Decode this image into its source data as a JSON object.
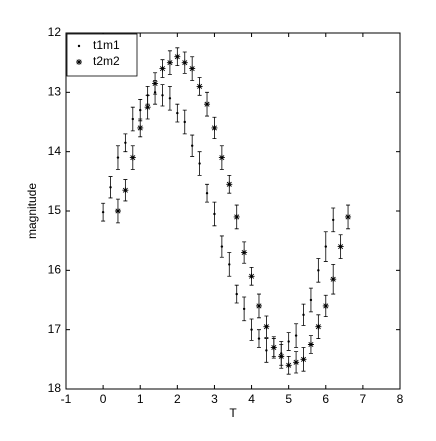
{
  "chart_data": {
    "type": "errorbar_scatter",
    "xlabel": "T",
    "ylabel": "magnitude",
    "xlim": [
      -1,
      8
    ],
    "xticks": [
      -1,
      0,
      1,
      2,
      3,
      4,
      5,
      6,
      7,
      8
    ],
    "ylim": [
      12,
      18
    ],
    "yticks": [
      12,
      13,
      14,
      15,
      16,
      17,
      18
    ],
    "invert_y": true,
    "legend": "northwest",
    "series": [
      {
        "name": "t1m1",
        "marker": "dot",
        "color": "#000000",
        "x": [
          0,
          0.2,
          0.4,
          0.6,
          0.8,
          1.0,
          1.2,
          1.4,
          1.6,
          1.8,
          2.0,
          2.2,
          2.4,
          2.6,
          2.8,
          3.0,
          3.2,
          3.4,
          3.6,
          3.8,
          4.0,
          4.2,
          4.4,
          4.6,
          4.8,
          5.0,
          5.2,
          5.4,
          5.6,
          5.8,
          6.0,
          6.2
        ],
        "values": [
          15.02,
          14.6,
          14.1,
          13.85,
          13.45,
          13.3,
          13.05,
          13.0,
          13.05,
          13.1,
          13.35,
          13.5,
          13.9,
          14.2,
          14.7,
          15.05,
          15.6,
          15.9,
          16.4,
          16.65,
          17.0,
          17.15,
          17.35,
          17.3,
          17.4,
          17.2,
          17.1,
          16.75,
          16.5,
          16.0,
          15.6,
          15.15
        ],
        "errors": [
          0.15,
          0.18,
          0.2,
          0.15,
          0.2,
          0.18,
          0.15,
          0.2,
          0.18,
          0.2,
          0.15,
          0.2,
          0.18,
          0.2,
          0.15,
          0.2,
          0.18,
          0.2,
          0.15,
          0.2,
          0.18,
          0.15,
          0.2,
          0.18,
          0.2,
          0.15,
          0.2,
          0.18,
          0.2,
          0.2,
          0.25,
          0.2
        ]
      },
      {
        "name": "t2m2",
        "marker": "asterisk",
        "color": "#000000",
        "x": [
          0.4,
          0.6,
          0.8,
          1.0,
          1.2,
          1.4,
          1.6,
          1.8,
          2.0,
          2.2,
          2.4,
          2.6,
          2.8,
          3.0,
          3.2,
          3.4,
          3.6,
          3.8,
          4.0,
          4.2,
          4.4,
          4.6,
          4.8,
          5.0,
          5.2,
          5.4,
          5.6,
          5.8,
          6.0,
          6.2,
          6.4,
          6.6
        ],
        "values": [
          15.0,
          14.65,
          14.1,
          13.6,
          13.25,
          12.85,
          12.6,
          12.5,
          12.4,
          12.5,
          12.6,
          12.9,
          13.2,
          13.6,
          14.1,
          14.55,
          15.1,
          15.7,
          16.1,
          16.6,
          16.95,
          17.3,
          17.45,
          17.6,
          17.55,
          17.5,
          17.25,
          16.95,
          16.6,
          16.15,
          15.6,
          15.1
        ],
        "errors": [
          0.2,
          0.18,
          0.2,
          0.15,
          0.2,
          0.18,
          0.15,
          0.2,
          0.15,
          0.18,
          0.2,
          0.15,
          0.2,
          0.18,
          0.2,
          0.15,
          0.2,
          0.18,
          0.15,
          0.2,
          0.18,
          0.15,
          0.2,
          0.15,
          0.18,
          0.2,
          0.15,
          0.2,
          0.18,
          0.25,
          0.2,
          0.2
        ]
      }
    ]
  }
}
